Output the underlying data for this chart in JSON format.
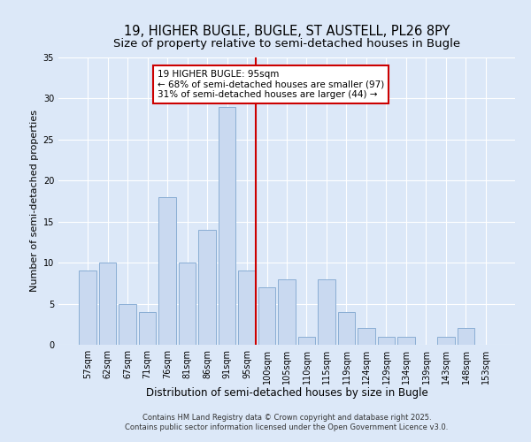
{
  "title": "19, HIGHER BUGLE, BUGLE, ST AUSTELL, PL26 8PY",
  "subtitle": "Size of property relative to semi-detached houses in Bugle",
  "xlabel": "Distribution of semi-detached houses by size in Bugle",
  "ylabel": "Number of semi-detached properties",
  "bar_labels": [
    "57sqm",
    "62sqm",
    "67sqm",
    "71sqm",
    "76sqm",
    "81sqm",
    "86sqm",
    "91sqm",
    "95sqm",
    "100sqm",
    "105sqm",
    "110sqm",
    "115sqm",
    "119sqm",
    "124sqm",
    "129sqm",
    "134sqm",
    "139sqm",
    "143sqm",
    "148sqm",
    "153sqm"
  ],
  "bar_values": [
    9,
    10,
    5,
    4,
    18,
    10,
    14,
    29,
    9,
    7,
    8,
    1,
    8,
    4,
    2,
    1,
    1,
    0,
    1,
    2,
    0
  ],
  "bar_color": "#c9d9f0",
  "bar_edge_color": "#8aaed4",
  "highlight_index": 8,
  "highlight_line_color": "#cc0000",
  "annotation_title": "19 HIGHER BUGLE: 95sqm",
  "annotation_line1": "← 68% of semi-detached houses are smaller (97)",
  "annotation_line2": "31% of semi-detached houses are larger (44) →",
  "annotation_box_color": "#ffffff",
  "annotation_box_edge_color": "#cc0000",
  "ylim": [
    0,
    35
  ],
  "yticks": [
    0,
    5,
    10,
    15,
    20,
    25,
    30,
    35
  ],
  "background_color": "#dce8f8",
  "footer1": "Contains HM Land Registry data © Crown copyright and database right 2025.",
  "footer2": "Contains public sector information licensed under the Open Government Licence v3.0.",
  "title_fontsize": 10.5,
  "xlabel_fontsize": 8.5,
  "ylabel_fontsize": 8,
  "tick_fontsize": 7,
  "footer_fontsize": 6,
  "ann_fontsize": 7.5
}
